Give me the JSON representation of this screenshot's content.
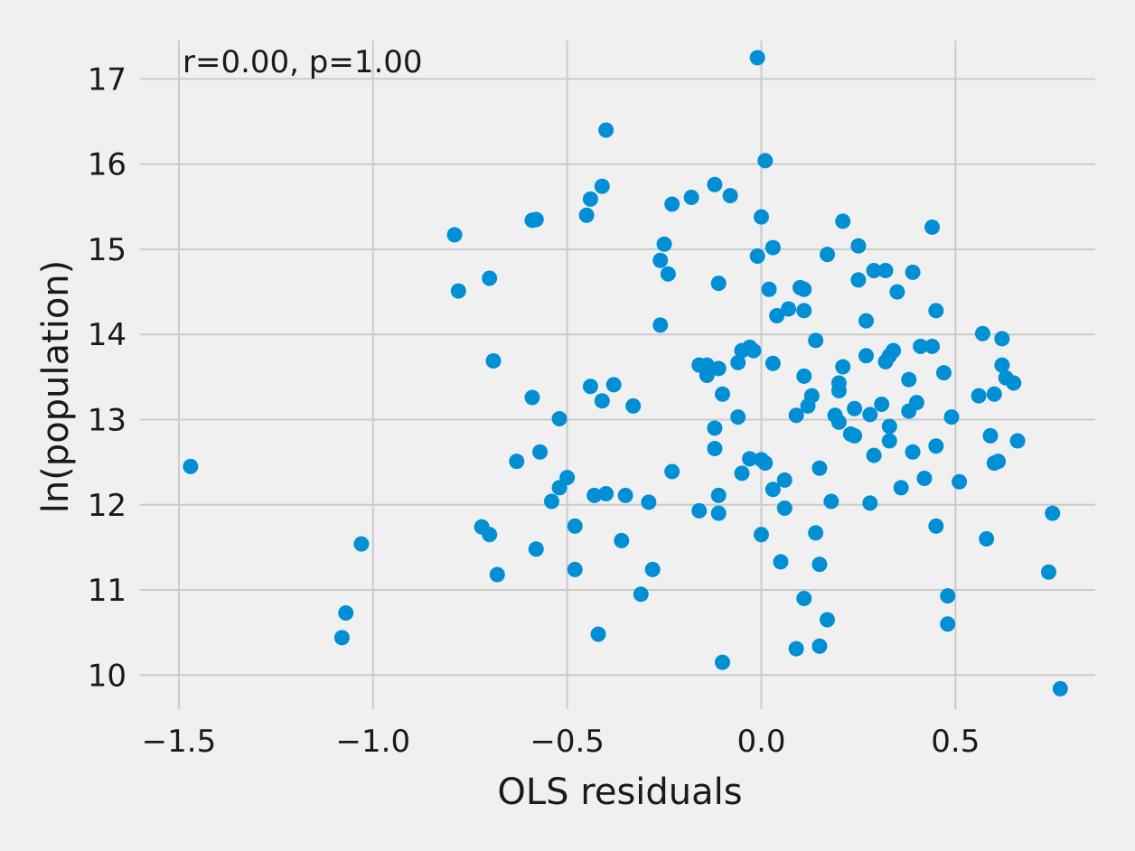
{
  "chart_data": {
    "type": "scatter",
    "title": "",
    "xlabel": "OLS residuals",
    "ylabel": "ln(population)",
    "annotation": "r=0.00, p=1.00",
    "xlim": [
      -1.6,
      0.86
    ],
    "ylim": [
      9.6,
      17.45
    ],
    "xticks": [
      -1.5,
      -1.0,
      -0.5,
      0.0,
      0.5
    ],
    "xtick_labels": [
      "−1.5",
      "−1.0",
      "−0.5",
      "0.0",
      "0.5"
    ],
    "yticks": [
      10,
      11,
      12,
      13,
      14,
      15,
      16,
      17
    ],
    "ytick_labels": [
      "10",
      "11",
      "12",
      "13",
      "14",
      "15",
      "16",
      "17"
    ],
    "grid": true,
    "point_color": "#008fd5",
    "background_color": "#f0f0f0",
    "grid_color": "#cbcbcb",
    "points": [
      [
        -1.47,
        12.45
      ],
      [
        -1.08,
        10.44
      ],
      [
        -1.07,
        10.73
      ],
      [
        -1.03,
        11.54
      ],
      [
        -0.79,
        15.17
      ],
      [
        -0.78,
        14.51
      ],
      [
        -0.72,
        11.74
      ],
      [
        -0.7,
        14.66
      ],
      [
        -0.7,
        11.65
      ],
      [
        -0.69,
        13.69
      ],
      [
        -0.68,
        11.18
      ],
      [
        -0.63,
        12.51
      ],
      [
        -0.59,
        15.34
      ],
      [
        -0.58,
        15.35
      ],
      [
        -0.59,
        13.26
      ],
      [
        -0.58,
        11.48
      ],
      [
        -0.57,
        12.62
      ],
      [
        -0.54,
        12.04
      ],
      [
        -0.52,
        12.2
      ],
      [
        -0.52,
        13.01
      ],
      [
        -0.5,
        12.32
      ],
      [
        -0.48,
        11.75
      ],
      [
        -0.48,
        11.24
      ],
      [
        -0.45,
        15.4
      ],
      [
        -0.44,
        15.59
      ],
      [
        -0.44,
        13.39
      ],
      [
        -0.43,
        12.11
      ],
      [
        -0.42,
        10.48
      ],
      [
        -0.41,
        15.74
      ],
      [
        -0.41,
        13.22
      ],
      [
        -0.4,
        16.4
      ],
      [
        -0.4,
        12.13
      ],
      [
        -0.38,
        13.41
      ],
      [
        -0.36,
        11.58
      ],
      [
        -0.35,
        12.11
      ],
      [
        -0.33,
        13.16
      ],
      [
        -0.31,
        10.95
      ],
      [
        -0.29,
        12.03
      ],
      [
        -0.28,
        11.24
      ],
      [
        -0.26,
        14.87
      ],
      [
        -0.25,
        15.06
      ],
      [
        -0.24,
        14.71
      ],
      [
        -0.26,
        14.11
      ],
      [
        -0.23,
        15.53
      ],
      [
        -0.23,
        12.39
      ],
      [
        -0.18,
        15.61
      ],
      [
        -0.16,
        13.64
      ],
      [
        -0.14,
        13.52
      ],
      [
        -0.14,
        13.64
      ],
      [
        -0.16,
        11.93
      ],
      [
        -0.12,
        15.76
      ],
      [
        -0.11,
        14.6
      ],
      [
        -0.11,
        13.6
      ],
      [
        -0.1,
        13.3
      ],
      [
        -0.12,
        12.9
      ],
      [
        -0.12,
        12.66
      ],
      [
        -0.11,
        12.11
      ],
      [
        -0.11,
        11.9
      ],
      [
        -0.1,
        10.15
      ],
      [
        -0.08,
        15.63
      ],
      [
        -0.06,
        13.67
      ],
      [
        -0.06,
        13.03
      ],
      [
        -0.05,
        12.37
      ],
      [
        -0.05,
        13.81
      ],
      [
        -0.03,
        13.85
      ],
      [
        -0.02,
        13.81
      ],
      [
        -0.03,
        12.54
      ],
      [
        -0.01,
        17.25
      ],
      [
        0.0,
        15.38
      ],
      [
        -0.01,
        14.92
      ],
      [
        0.01,
        16.04
      ],
      [
        0.02,
        14.53
      ],
      [
        0.03,
        15.02
      ],
      [
        0.03,
        13.66
      ],
      [
        0.04,
        14.22
      ],
      [
        0.0,
        12.53
      ],
      [
        0.01,
        12.49
      ],
      [
        0.0,
        11.65
      ],
      [
        0.03,
        12.18
      ],
      [
        0.05,
        11.33
      ],
      [
        0.07,
        14.3
      ],
      [
        0.06,
        12.29
      ],
      [
        0.06,
        11.96
      ],
      [
        0.09,
        13.05
      ],
      [
        0.1,
        14.55
      ],
      [
        0.11,
        14.53
      ],
      [
        0.11,
        14.28
      ],
      [
        0.11,
        13.51
      ],
      [
        0.12,
        13.16
      ],
      [
        0.13,
        13.28
      ],
      [
        0.14,
        13.93
      ],
      [
        0.15,
        12.43
      ],
      [
        0.14,
        11.67
      ],
      [
        0.15,
        11.3
      ],
      [
        0.11,
        10.9
      ],
      [
        0.09,
        10.31
      ],
      [
        0.17,
        14.94
      ],
      [
        0.18,
        12.04
      ],
      [
        0.15,
        10.34
      ],
      [
        0.17,
        10.65
      ],
      [
        0.19,
        13.05
      ],
      [
        0.2,
        13.43
      ],
      [
        0.2,
        13.34
      ],
      [
        0.21,
        13.62
      ],
      [
        0.2,
        12.97
      ],
      [
        0.21,
        15.33
      ],
      [
        0.23,
        12.83
      ],
      [
        0.24,
        13.13
      ],
      [
        0.24,
        12.81
      ],
      [
        0.25,
        15.04
      ],
      [
        0.25,
        14.64
      ],
      [
        0.27,
        14.16
      ],
      [
        0.27,
        13.75
      ],
      [
        0.28,
        13.06
      ],
      [
        0.28,
        12.02
      ],
      [
        0.29,
        14.75
      ],
      [
        0.29,
        12.58
      ],
      [
        0.31,
        13.18
      ],
      [
        0.32,
        14.75
      ],
      [
        0.32,
        13.68
      ],
      [
        0.33,
        13.75
      ],
      [
        0.33,
        12.92
      ],
      [
        0.33,
        12.75
      ],
      [
        0.34,
        13.81
      ],
      [
        0.35,
        14.5
      ],
      [
        0.36,
        12.2
      ],
      [
        0.38,
        13.47
      ],
      [
        0.38,
        13.1
      ],
      [
        0.39,
        12.62
      ],
      [
        0.39,
        14.73
      ],
      [
        0.4,
        13.2
      ],
      [
        0.41,
        13.86
      ],
      [
        0.42,
        12.31
      ],
      [
        0.44,
        15.26
      ],
      [
        0.45,
        14.28
      ],
      [
        0.44,
        13.86
      ],
      [
        0.45,
        12.69
      ],
      [
        0.45,
        11.75
      ],
      [
        0.47,
        13.55
      ],
      [
        0.48,
        10.6
      ],
      [
        0.48,
        10.93
      ],
      [
        0.49,
        13.03
      ],
      [
        0.51,
        12.27
      ],
      [
        0.56,
        13.28
      ],
      [
        0.57,
        14.01
      ],
      [
        0.58,
        11.6
      ],
      [
        0.59,
        12.81
      ],
      [
        0.6,
        12.49
      ],
      [
        0.6,
        13.3
      ],
      [
        0.61,
        12.51
      ],
      [
        0.62,
        13.95
      ],
      [
        0.62,
        13.64
      ],
      [
        0.63,
        13.49
      ],
      [
        0.65,
        13.43
      ],
      [
        0.66,
        12.75
      ],
      [
        0.74,
        11.21
      ],
      [
        0.75,
        11.9
      ],
      [
        0.77,
        9.84
      ]
    ]
  }
}
